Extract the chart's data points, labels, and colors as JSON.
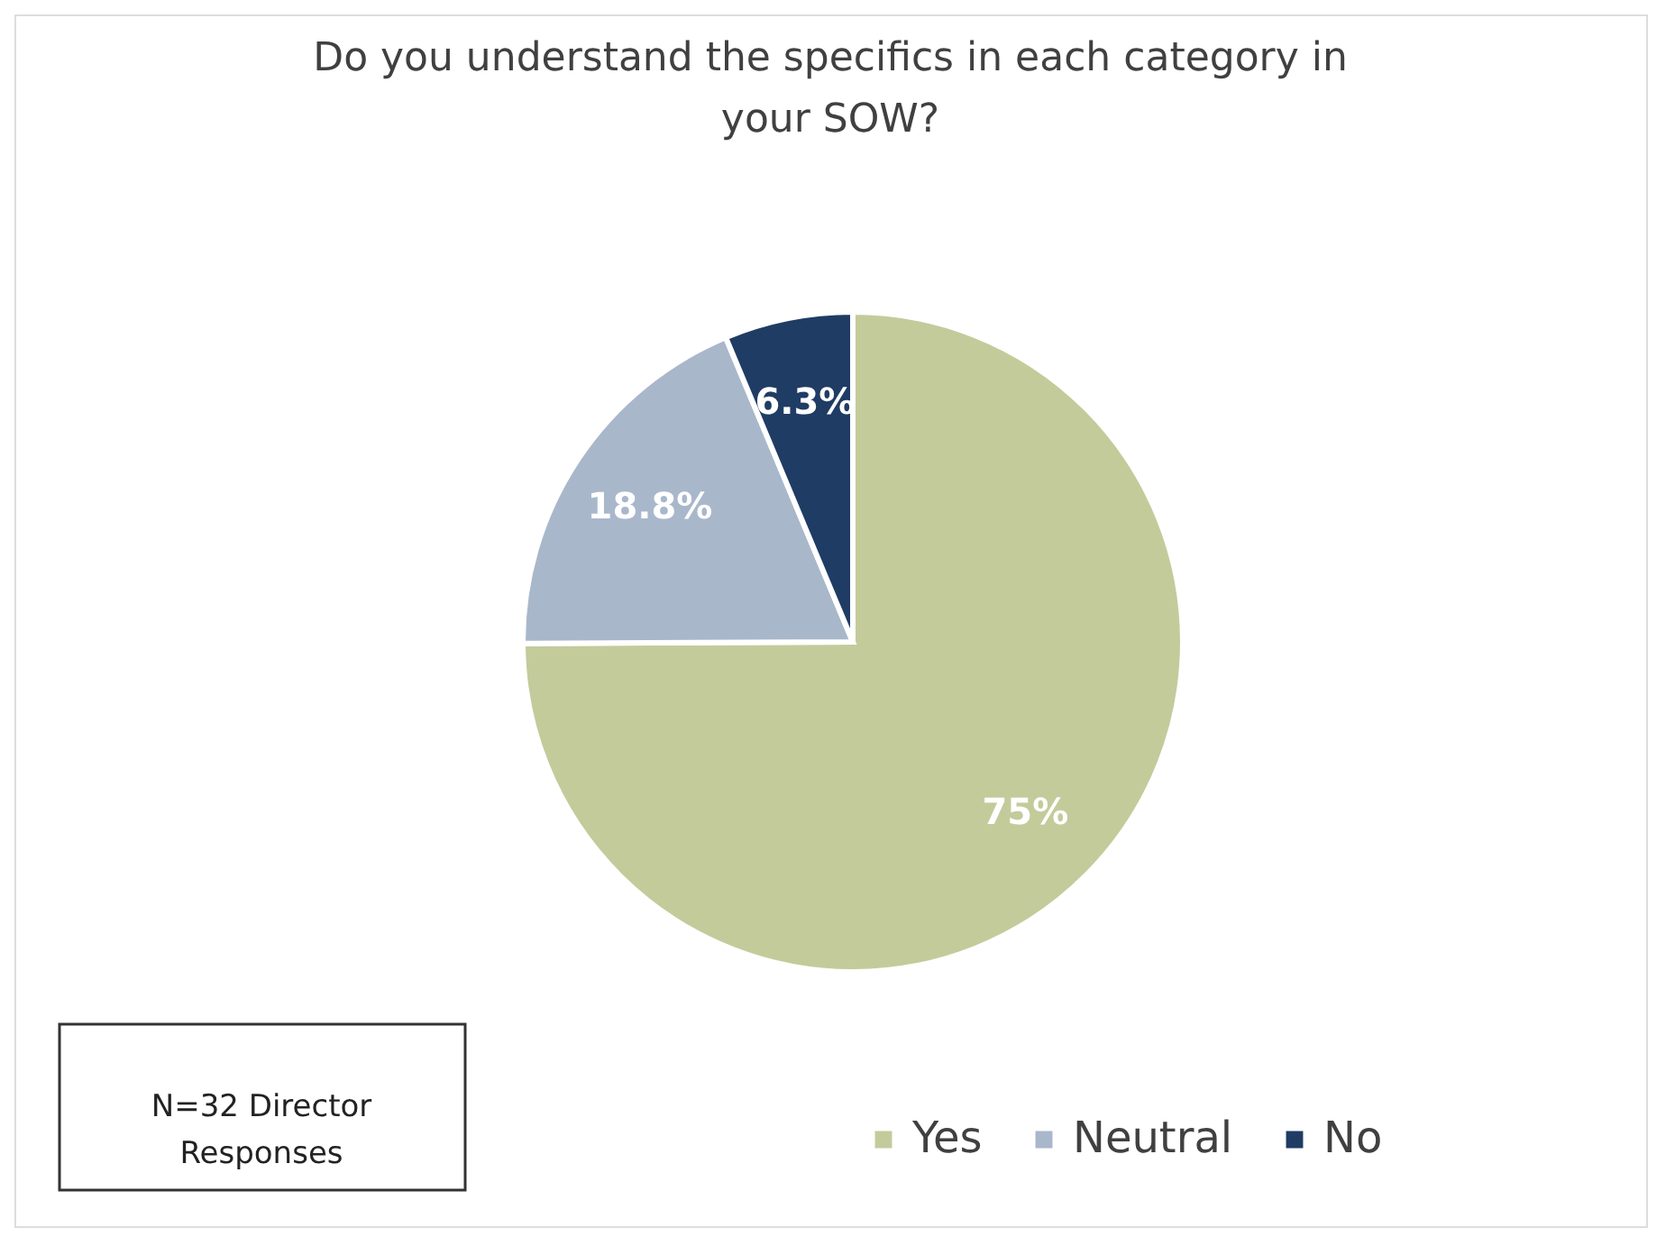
{
  "chart_data": {
    "type": "pie",
    "title": "Do you understand the specifics in each category in your SOW?",
    "categories": [
      "Yes",
      "Neutral",
      "No"
    ],
    "values": [
      75,
      18.8,
      6.3
    ],
    "value_labels": [
      "75%",
      "18.8%",
      "6.3%"
    ],
    "colors": [
      "#c3cb9b",
      "#a9b7cb",
      "#1f3c64"
    ],
    "legend": "bottom",
    "annotations": [
      "N=32 Director Responses"
    ]
  }
}
